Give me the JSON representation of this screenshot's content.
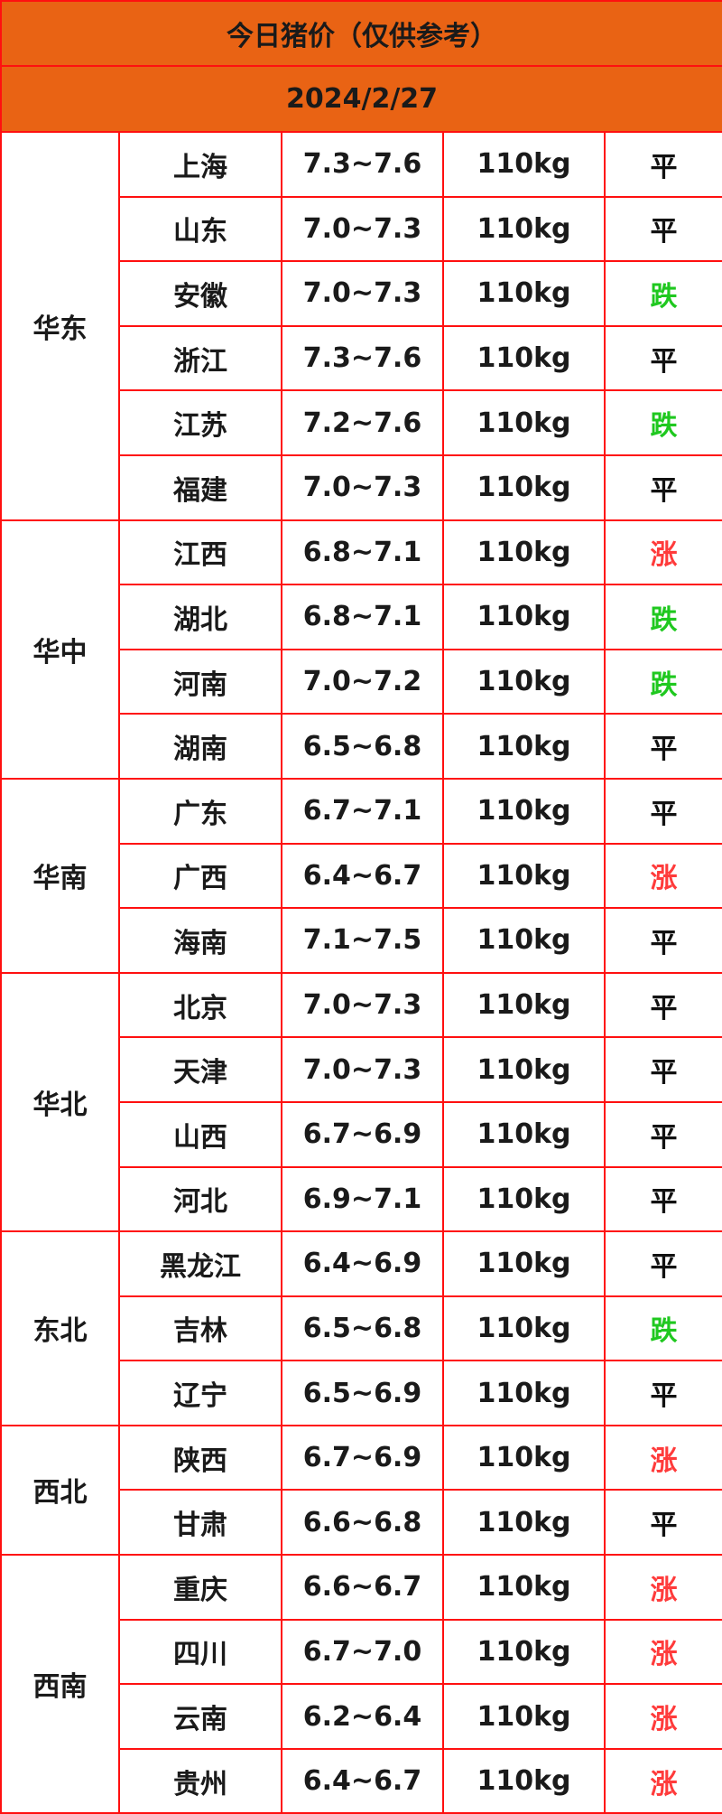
{
  "title": "今日猪价（仅供参考）",
  "date": "2024/2/27",
  "colors": {
    "header_bg": "#e96314",
    "border": "#ff1010",
    "down": "#1fc81f",
    "up": "#ff3b3b",
    "flat": "#111111"
  },
  "regions": [
    {
      "name": "华东",
      "rows": [
        {
          "province": "上海",
          "price": "7.3~7.6",
          "weight": "110kg",
          "trend": "平"
        },
        {
          "province": "山东",
          "price": "7.0~7.3",
          "weight": "110kg",
          "trend": "平"
        },
        {
          "province": "安徽",
          "price": "7.0~7.3",
          "weight": "110kg",
          "trend": "跌"
        },
        {
          "province": "浙江",
          "price": "7.3~7.6",
          "weight": "110kg",
          "trend": "平"
        },
        {
          "province": "江苏",
          "price": "7.2~7.6",
          "weight": "110kg",
          "trend": "跌"
        },
        {
          "province": "福建",
          "price": "7.0~7.3",
          "weight": "110kg",
          "trend": "平"
        }
      ]
    },
    {
      "name": "华中",
      "rows": [
        {
          "province": "江西",
          "price": "6.8~7.1",
          "weight": "110kg",
          "trend": "涨"
        },
        {
          "province": "湖北",
          "price": "6.8~7.1",
          "weight": "110kg",
          "trend": "跌"
        },
        {
          "province": "河南",
          "price": "7.0~7.2",
          "weight": "110kg",
          "trend": "跌"
        },
        {
          "province": "湖南",
          "price": "6.5~6.8",
          "weight": "110kg",
          "trend": "平"
        }
      ]
    },
    {
      "name": "华南",
      "rows": [
        {
          "province": "广东",
          "price": "6.7~7.1",
          "weight": "110kg",
          "trend": "平"
        },
        {
          "province": "广西",
          "price": "6.4~6.7",
          "weight": "110kg",
          "trend": "涨"
        },
        {
          "province": "海南",
          "price": "7.1~7.5",
          "weight": "110kg",
          "trend": "平"
        }
      ]
    },
    {
      "name": "华北",
      "rows": [
        {
          "province": "北京",
          "price": "7.0~7.3",
          "weight": "110kg",
          "trend": "平"
        },
        {
          "province": "天津",
          "price": "7.0~7.3",
          "weight": "110kg",
          "trend": "平"
        },
        {
          "province": "山西",
          "price": "6.7~6.9",
          "weight": "110kg",
          "trend": "平"
        },
        {
          "province": "河北",
          "price": "6.9~7.1",
          "weight": "110kg",
          "trend": "平"
        }
      ]
    },
    {
      "name": "东北",
      "rows": [
        {
          "province": "黑龙江",
          "price": "6.4~6.9",
          "weight": "110kg",
          "trend": "平"
        },
        {
          "province": "吉林",
          "price": "6.5~6.8",
          "weight": "110kg",
          "trend": "跌"
        },
        {
          "province": "辽宁",
          "price": "6.5~6.9",
          "weight": "110kg",
          "trend": "平"
        }
      ]
    },
    {
      "name": "西北",
      "rows": [
        {
          "province": "陕西",
          "price": "6.7~6.9",
          "weight": "110kg",
          "trend": "涨"
        },
        {
          "province": "甘肃",
          "price": "6.6~6.8",
          "weight": "110kg",
          "trend": "平"
        }
      ]
    },
    {
      "name": "西南",
      "rows": [
        {
          "province": "重庆",
          "price": "6.6~6.7",
          "weight": "110kg",
          "trend": "涨"
        },
        {
          "province": "四川",
          "price": "6.7~7.0",
          "weight": "110kg",
          "trend": "涨"
        },
        {
          "province": "云南",
          "price": "6.2~6.4",
          "weight": "110kg",
          "trend": "涨"
        },
        {
          "province": "贵州",
          "price": "6.4~6.7",
          "weight": "110kg",
          "trend": "涨"
        }
      ]
    }
  ]
}
